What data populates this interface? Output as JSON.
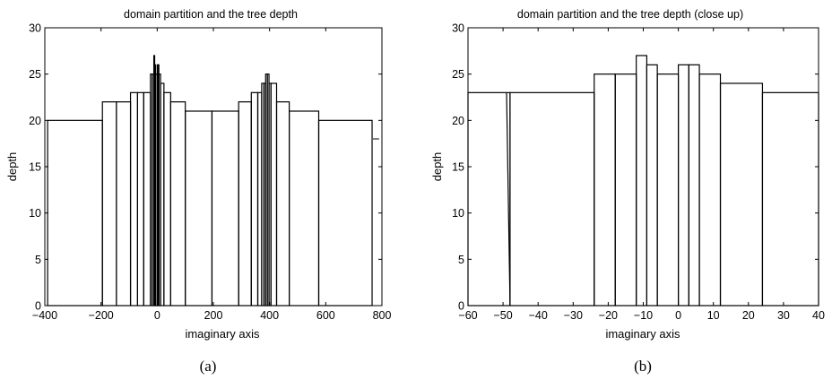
{
  "chart_data": [
    {
      "type": "bar",
      "title": "domain partition and the tree depth",
      "xlabel": "imaginary axis",
      "ylabel": "depth",
      "caption": "(a)",
      "xlim": [
        -400,
        800
      ],
      "ylim": [
        0,
        30
      ],
      "xticks": [
        -400,
        -200,
        0,
        200,
        400,
        600,
        800
      ],
      "yticks": [
        0,
        5,
        10,
        15,
        20,
        25,
        30
      ],
      "grid": false,
      "bins": [
        {
          "x0": -390,
          "x1": -195,
          "depth": 20
        },
        {
          "x0": -195,
          "x1": -145,
          "depth": 22
        },
        {
          "x0": -145,
          "x1": -95,
          "depth": 22
        },
        {
          "x0": -95,
          "x1": -70,
          "depth": 23
        },
        {
          "x0": -70,
          "x1": -48,
          "depth": 23
        },
        {
          "x0": -48,
          "x1": -24,
          "depth": 23
        },
        {
          "x0": -24,
          "x1": -18,
          "depth": 25
        },
        {
          "x0": -18,
          "x1": -12,
          "depth": 25
        },
        {
          "x0": -12,
          "x1": -9,
          "depth": 27
        },
        {
          "x0": -9,
          "x1": -6,
          "depth": 26
        },
        {
          "x0": -6,
          "x1": 0,
          "depth": 25
        },
        {
          "x0": 0,
          "x1": 3,
          "depth": 26
        },
        {
          "x0": 3,
          "x1": 6,
          "depth": 26
        },
        {
          "x0": 6,
          "x1": 12,
          "depth": 25
        },
        {
          "x0": 12,
          "x1": 24,
          "depth": 24
        },
        {
          "x0": 24,
          "x1": 48,
          "depth": 23
        },
        {
          "x0": 48,
          "x1": 100,
          "depth": 22
        },
        {
          "x0": 100,
          "x1": 195,
          "depth": 21
        },
        {
          "x0": 195,
          "x1": 290,
          "depth": 21
        },
        {
          "x0": 290,
          "x1": 335,
          "depth": 22
        },
        {
          "x0": 335,
          "x1": 358,
          "depth": 23
        },
        {
          "x0": 358,
          "x1": 372,
          "depth": 23
        },
        {
          "x0": 372,
          "x1": 380,
          "depth": 24
        },
        {
          "x0": 380,
          "x1": 386,
          "depth": 24
        },
        {
          "x0": 386,
          "x1": 392,
          "depth": 25
        },
        {
          "x0": 392,
          "x1": 398,
          "depth": 25
        },
        {
          "x0": 398,
          "x1": 405,
          "depth": 24
        },
        {
          "x0": 405,
          "x1": 425,
          "depth": 24
        },
        {
          "x0": 425,
          "x1": 470,
          "depth": 22
        },
        {
          "x0": 470,
          "x1": 575,
          "depth": 21
        },
        {
          "x0": 575,
          "x1": 765,
          "depth": 20
        }
      ],
      "marks": [
        {
          "x0": 768,
          "x1": 790,
          "depth": 18
        }
      ]
    },
    {
      "type": "bar",
      "title": "domain partition and the tree depth (close up)",
      "xlabel": "imaginary axis",
      "ylabel": "depth",
      "caption": "(b)",
      "xlim": [
        -60,
        40
      ],
      "ylim": [
        0,
        30
      ],
      "xticks": [
        -60,
        -50,
        -40,
        -30,
        -20,
        -10,
        0,
        10,
        20,
        30,
        40
      ],
      "yticks": [
        0,
        5,
        10,
        15,
        20,
        25,
        30
      ],
      "grid": false,
      "bins": [
        {
          "x0": -60,
          "x1": -48,
          "depth": 23
        },
        {
          "x0": -48,
          "x1": -24,
          "depth": 23
        },
        {
          "x0": -24,
          "x1": -18,
          "depth": 25
        },
        {
          "x0": -18,
          "x1": -12,
          "depth": 25
        },
        {
          "x0": -12,
          "x1": -9,
          "depth": 27
        },
        {
          "x0": -9,
          "x1": -6,
          "depth": 26
        },
        {
          "x0": -6,
          "x1": 0,
          "depth": 25
        },
        {
          "x0": 0,
          "x1": 3,
          "depth": 26
        },
        {
          "x0": 3,
          "x1": 6,
          "depth": 26
        },
        {
          "x0": 6,
          "x1": 12,
          "depth": 25
        },
        {
          "x0": 12,
          "x1": 24,
          "depth": 24
        },
        {
          "x0": 24,
          "x1": 40,
          "depth": 23
        }
      ],
      "slant": {
        "x_top": -49,
        "x_bottom": -48,
        "depth": 23
      }
    }
  ]
}
